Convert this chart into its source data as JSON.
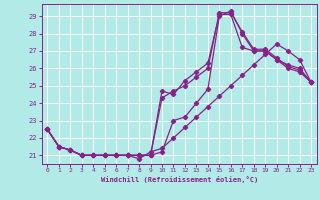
{
  "xlabel": "Windchill (Refroidissement éolien,°C)",
  "background_color": "#b2eae8",
  "grid_color": "#ffffff",
  "line_color": "#882288",
  "xlim": [
    -0.5,
    23.5
  ],
  "ylim": [
    20.5,
    29.7
  ],
  "xticks": [
    0,
    1,
    2,
    3,
    4,
    5,
    6,
    7,
    8,
    9,
    10,
    11,
    12,
    13,
    14,
    15,
    16,
    17,
    18,
    19,
    20,
    21,
    22,
    23
  ],
  "yticks": [
    21,
    22,
    23,
    24,
    25,
    26,
    27,
    28,
    29
  ],
  "curves": [
    [
      22.5,
      21.5,
      21.3,
      21.0,
      21.0,
      21.0,
      21.0,
      21.0,
      21.0,
      21.0,
      21.2,
      23.0,
      23.2,
      24.0,
      24.8,
      29.0,
      29.3,
      28.0,
      27.0,
      27.0,
      26.5,
      26.0,
      25.8,
      25.2
    ],
    [
      22.5,
      21.5,
      21.3,
      21.0,
      21.0,
      21.0,
      21.0,
      21.0,
      21.0,
      21.0,
      24.7,
      24.5,
      25.3,
      25.8,
      26.3,
      29.1,
      29.1,
      27.2,
      27.0,
      27.0,
      26.5,
      26.2,
      26.0,
      25.2
    ],
    [
      22.5,
      21.5,
      21.3,
      21.0,
      21.0,
      21.0,
      21.0,
      21.0,
      21.0,
      21.0,
      24.3,
      24.7,
      25.0,
      25.5,
      26.0,
      29.2,
      29.2,
      28.1,
      27.1,
      27.1,
      26.6,
      26.1,
      25.9,
      25.2
    ],
    [
      22.5,
      21.5,
      21.3,
      21.0,
      21.0,
      21.0,
      21.0,
      21.0,
      20.8,
      21.2,
      21.4,
      22.0,
      22.6,
      23.2,
      23.8,
      24.4,
      25.0,
      25.6,
      26.2,
      26.8,
      27.4,
      27.0,
      26.5,
      25.2
    ]
  ]
}
